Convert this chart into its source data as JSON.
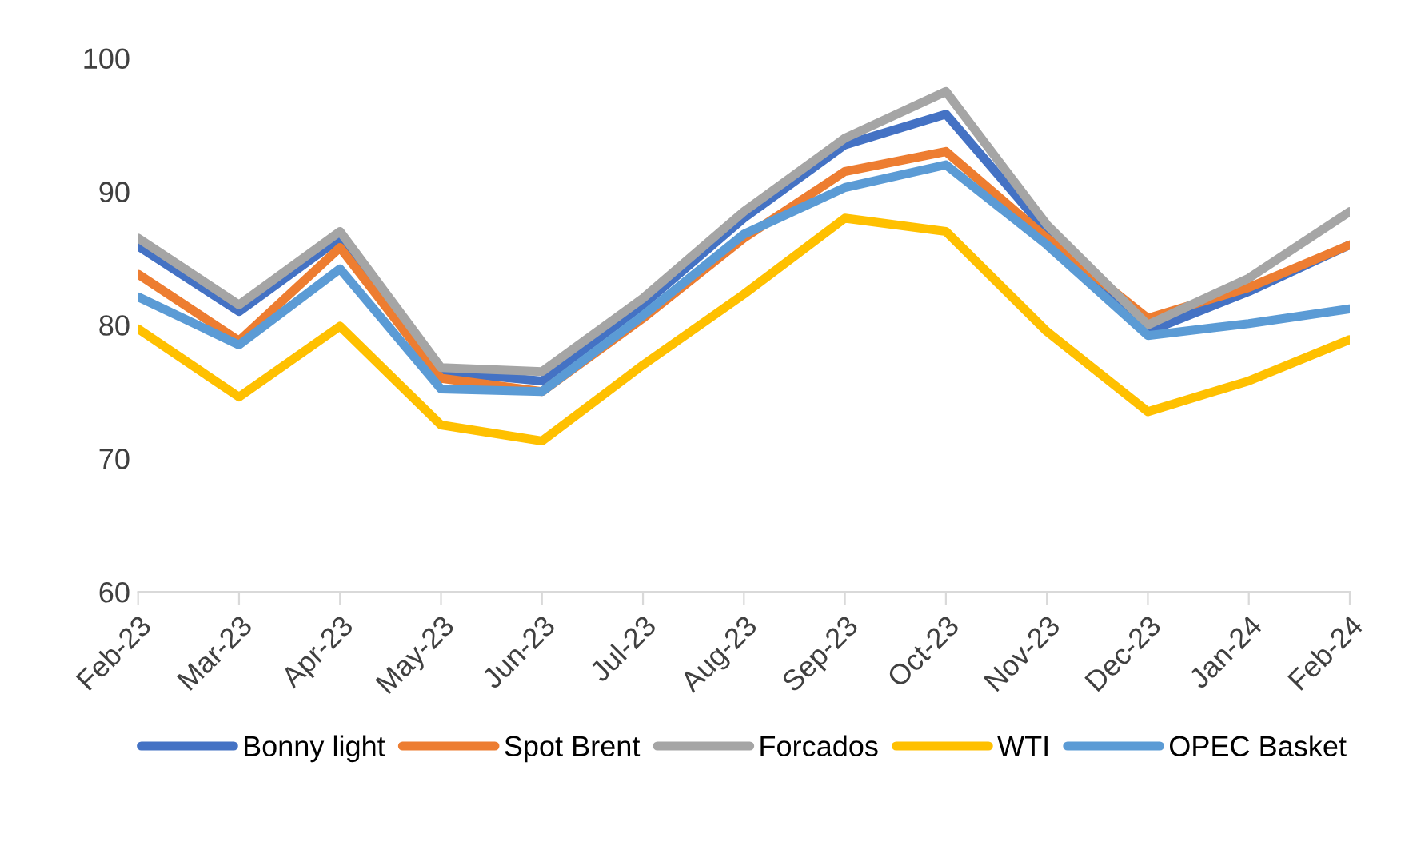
{
  "chart_data": {
    "type": "line",
    "categories": [
      "Feb-23",
      "Mar-23",
      "Apr-23",
      "May-23",
      "Jun-23",
      "Jul-23",
      "Aug-23",
      "Sep-23",
      "Oct-23",
      "Nov-23",
      "Dec-23",
      "Jan-24",
      "Feb-24"
    ],
    "series": [
      {
        "name": "Bonny light",
        "color": "#4472c4",
        "values": [
          85.9,
          81.0,
          86.5,
          76.5,
          75.8,
          81.5,
          88.0,
          93.5,
          95.8,
          87.0,
          79.5,
          82.5,
          86.0
        ]
      },
      {
        "name": "Spot Brent",
        "color": "#ed7d31",
        "values": [
          83.8,
          78.8,
          85.8,
          76.0,
          75.0,
          80.5,
          86.5,
          91.5,
          93.0,
          86.5,
          80.5,
          82.8,
          86.0
        ]
      },
      {
        "name": "Forcados",
        "color": "#a5a5a5",
        "values": [
          86.5,
          81.5,
          87.0,
          76.8,
          76.5,
          82.0,
          88.5,
          94.0,
          97.5,
          87.5,
          80.0,
          83.5,
          88.5
        ]
      },
      {
        "name": "WTI",
        "color": "#ffc000",
        "values": [
          79.7,
          74.6,
          79.9,
          72.5,
          71.3,
          77.0,
          82.3,
          88.0,
          87.0,
          79.5,
          73.5,
          75.8,
          78.9
        ]
      },
      {
        "name": "OPEC Basket",
        "color": "#5b9bd5",
        "values": [
          82.1,
          78.5,
          84.2,
          75.2,
          75.0,
          80.7,
          86.8,
          90.3,
          92.0,
          86.0,
          79.2,
          80.1,
          81.2
        ]
      }
    ],
    "ylim": [
      60,
      100
    ],
    "yticks": [
      60,
      70,
      80,
      90,
      100
    ],
    "grid": false,
    "legend": "bottom"
  }
}
